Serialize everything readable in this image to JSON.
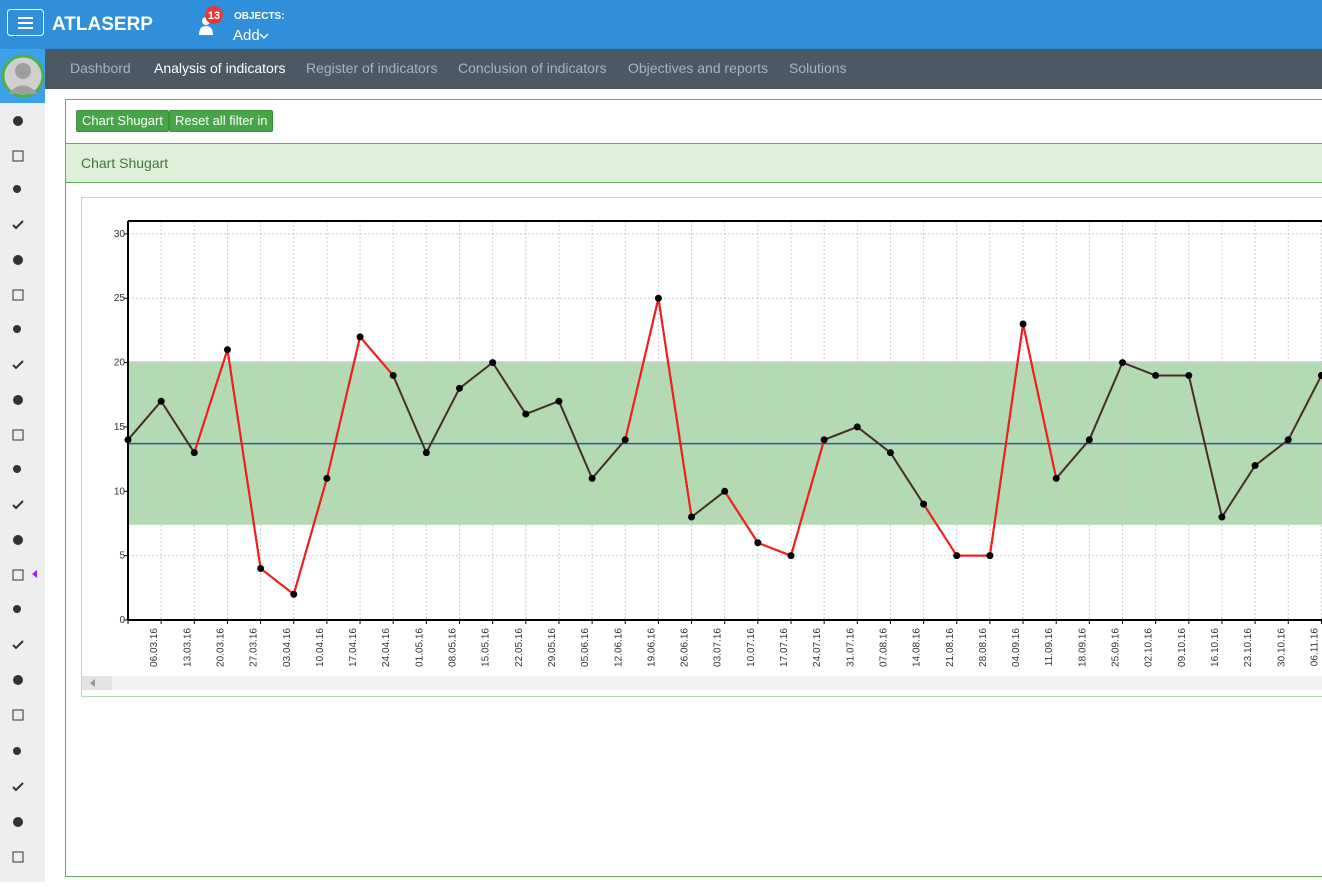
{
  "header": {
    "brand": "ATLASERP",
    "notifications": 13,
    "objects_label": "OBJECTS:",
    "objects_action": "Add"
  },
  "nav": {
    "items": [
      "Dashbord",
      "Analysis of indicators",
      "Register of indicators",
      "Conclusion of indicators",
      "Objectives and reports",
      "Solutions"
    ],
    "active": 1
  },
  "toolbar": {
    "buttons": [
      "Chart Shugart",
      "Reset all filter in"
    ]
  },
  "panel": {
    "title": "Chart Shugart"
  },
  "chart_data": {
    "type": "line",
    "categories": [
      null,
      "06.03.16",
      "13.03.16",
      "20.03.16",
      "27.03.16",
      "03.04.16",
      "10.04.16",
      "17.04.16",
      "24.04.16",
      "01.05.16",
      "08.05.16",
      "15.05.16",
      "22.05.16",
      "29.05.16",
      "05.06.16",
      "12.06.16",
      "19.06.16",
      "26.06.16",
      "03.07.16",
      "10.07.16",
      "17.07.16",
      "24.07.16",
      "31.07.16",
      "07.08.16",
      "14.08.16",
      "21.08.16",
      "28.08.16",
      "04.09.16",
      "11.09.16",
      "18.09.16",
      "25.09.16",
      "02.10.16",
      "09.10.16",
      "16.10.16",
      "23.10.16",
      "30.10.16",
      "06.11.16"
    ],
    "values": [
      14,
      17,
      13,
      21,
      4,
      2,
      11,
      22,
      19,
      13,
      18,
      20,
      16,
      17,
      11,
      14,
      25,
      8,
      10,
      6,
      5,
      14,
      15,
      13,
      9,
      5,
      5,
      23,
      11,
      14,
      20,
      19,
      19,
      8,
      12,
      14,
      19
    ],
    "color": "#4a2c2c",
    "out_of_control_color": "#ff1a1a",
    "marker_color": "#000000",
    "control_limits": {
      "upper": 20.1,
      "lower": 7.4,
      "center": 13.7,
      "band_color": "#b3dab3",
      "center_color": "#2b5d96"
    },
    "ylim": [
      0,
      31
    ],
    "yticks": [
      0,
      5,
      10,
      15,
      20,
      25,
      30
    ],
    "grid": true
  }
}
